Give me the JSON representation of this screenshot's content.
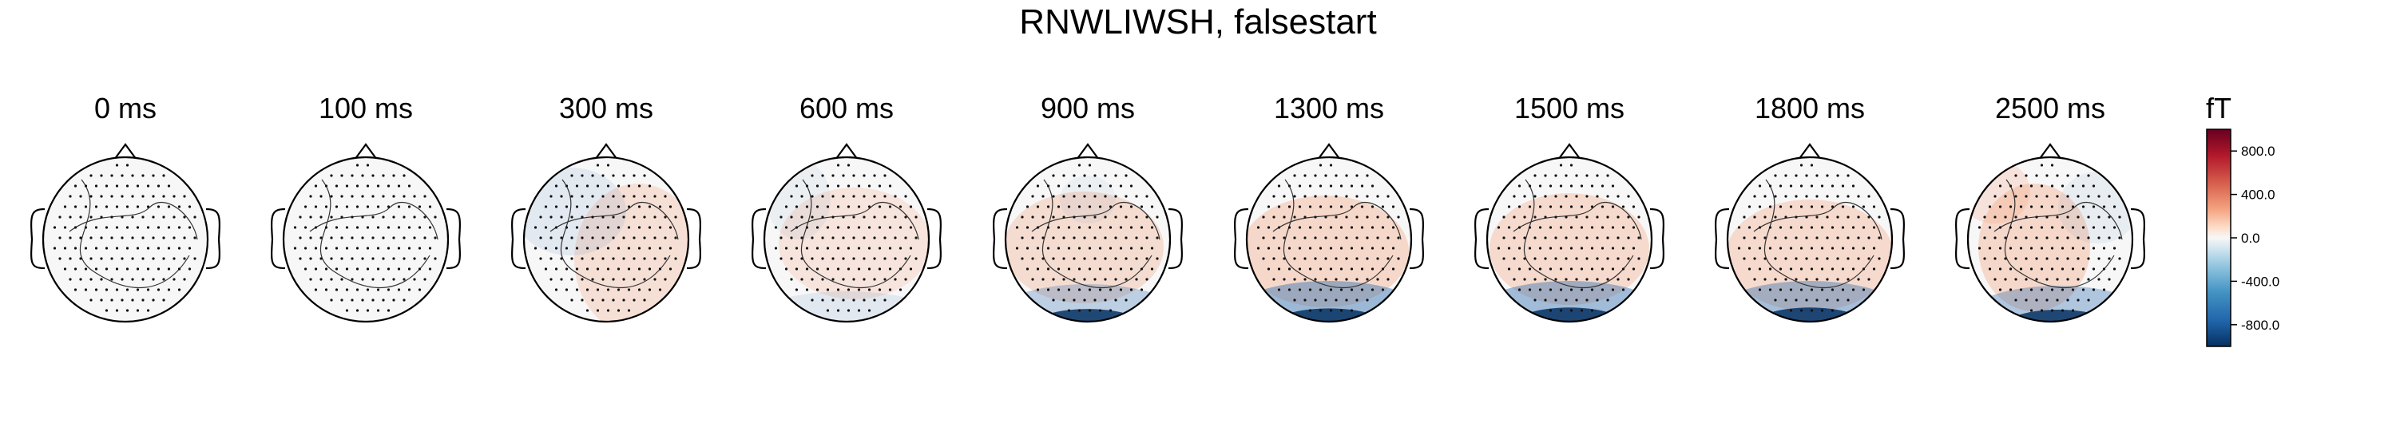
{
  "chart_data": {
    "type": "heatmap",
    "title": "RNWLIWSH, falsestart",
    "panels": [
      {
        "label": "0 ms",
        "time_ms": 0
      },
      {
        "label": "100 ms",
        "time_ms": 100
      },
      {
        "label": "300 ms",
        "time_ms": 300
      },
      {
        "label": "600 ms",
        "time_ms": 600
      },
      {
        "label": "900 ms",
        "time_ms": 900
      },
      {
        "label": "1300 ms",
        "time_ms": 1300
      },
      {
        "label": "1500 ms",
        "time_ms": 1500
      },
      {
        "label": "1800 ms",
        "time_ms": 1800
      },
      {
        "label": "2500 ms",
        "time_ms": 2500
      }
    ],
    "colorbar": {
      "unit": "fT",
      "colormap": "RdBu_r",
      "range": [
        -1000,
        1000
      ],
      "ticks": [
        {
          "value": 800,
          "label": "800.0"
        },
        {
          "value": 400,
          "label": "400.0"
        },
        {
          "value": 0,
          "label": "0.0"
        },
        {
          "value": -400,
          "label": "-400.0"
        },
        {
          "value": -800,
          "label": "-800.0"
        }
      ]
    },
    "colors": {
      "positive_max": "#67001f",
      "positive_mid": "#e6a48a",
      "neutral": "#f7f7f7",
      "negative_mid": "#92c5de",
      "negative_max": "#053061"
    }
  }
}
